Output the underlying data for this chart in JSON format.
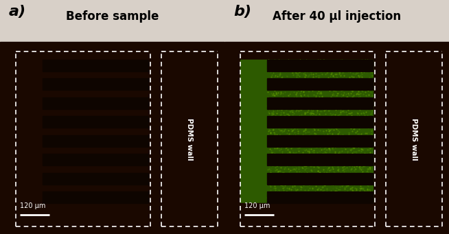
{
  "fig_width": 6.54,
  "fig_height": 3.41,
  "bg_outer": "#d8d0c8",
  "bg_image": "#1a0800",
  "bg_channel": "#201008",
  "stripe_color": "#140600",
  "stripe_light": "#2a1408",
  "panel_a_title": "Before sample",
  "panel_b_title": "After 40 μl injection",
  "label_a": "a)",
  "label_b": "b)",
  "scale_label": "120 μm",
  "pdms_label": "PDMS wall",
  "green_dark": "#2d5a00",
  "green_mid": "#4a8a00",
  "green_bright": "#7ab800",
  "dashed_color": "#ffffff",
  "n_stripes": 8,
  "title_fontsize": 12,
  "label_fontsize": 16
}
